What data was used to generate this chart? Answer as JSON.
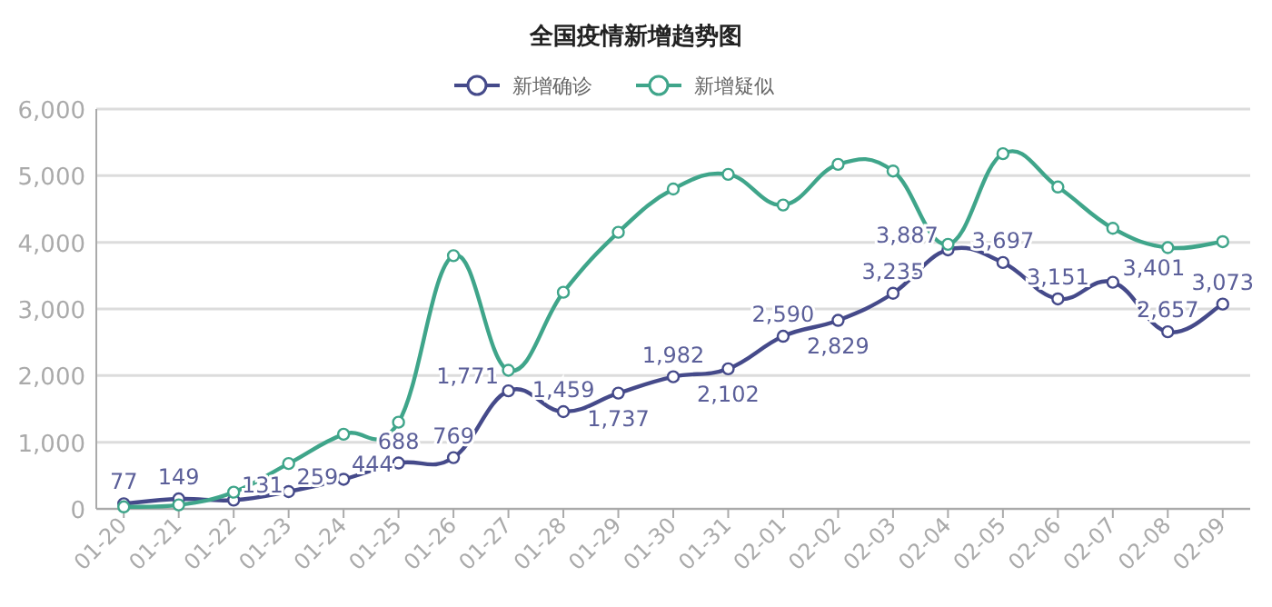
{
  "chart_data": {
    "type": "line",
    "title": "全国疫情新增趋势图",
    "categories": [
      "01-20",
      "01-21",
      "01-22",
      "01-23",
      "01-24",
      "01-25",
      "01-26",
      "01-27",
      "01-28",
      "01-29",
      "01-30",
      "01-31",
      "02-01",
      "02-02",
      "02-03",
      "02-04",
      "02-05",
      "02-06",
      "02-07",
      "02-08",
      "02-09"
    ],
    "series": [
      {
        "name": "新增确诊",
        "color": "#454a8a",
        "values": [
          77,
          149,
          131,
          259,
          444,
          688,
          769,
          1771,
          1459,
          1737,
          1982,
          2102,
          2590,
          2829,
          3235,
          3887,
          3697,
          3151,
          3401,
          2657,
          3073
        ],
        "value_labels": [
          "77",
          "149",
          "131",
          "259",
          "444",
          "688",
          "769",
          "1,771",
          "1,459",
          "1,737",
          "1,982",
          "2,102",
          "2,590",
          "2,829",
          "3,235",
          "3,887",
          "3,697",
          "3,151",
          "3,401",
          "2,657",
          "3,073"
        ]
      },
      {
        "name": "新增疑似",
        "color": "#3fa58a",
        "values": [
          30,
          60,
          250,
          680,
          1120,
          1300,
          3800,
          2080,
          3250,
          4150,
          4800,
          5020,
          4560,
          5170,
          5070,
          3970,
          5330,
          4830,
          4210,
          3920,
          4010
        ]
      }
    ],
    "ylim": [
      0,
      6000
    ],
    "yticks": [
      {
        "value": 0,
        "label": "0"
      },
      {
        "value": 1000,
        "label": "1,000"
      },
      {
        "value": 2000,
        "label": "2,000"
      },
      {
        "value": 3000,
        "label": "3,000"
      },
      {
        "value": 4000,
        "label": "4,000"
      },
      {
        "value": 5000,
        "label": "5,000"
      },
      {
        "value": 6000,
        "label": "6,000"
      }
    ],
    "grid": "y",
    "legend": "top",
    "marker": "circle",
    "line_style": "solid"
  }
}
